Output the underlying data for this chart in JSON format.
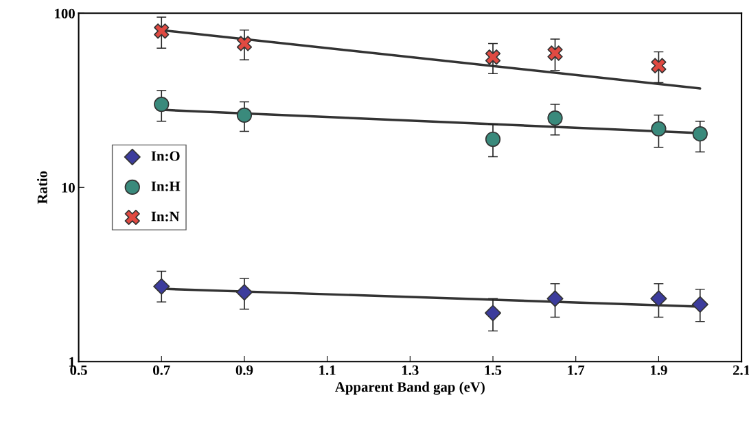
{
  "chart_data": {
    "type": "scatter",
    "xlabel": "Apparent Band gap (eV)",
    "ylabel": "Ratio",
    "log": "y",
    "xlim": [
      0.5,
      2.1
    ],
    "xticks": [
      0.5,
      0.7,
      0.9,
      1.1,
      1.3,
      1.5,
      1.7,
      1.9,
      2.1
    ],
    "ylim": [
      1,
      100
    ],
    "yticks": [
      1,
      10,
      100
    ],
    "grid": false,
    "legend": "left",
    "series": [
      {
        "name": "In:O",
        "color": "#3c3c9c",
        "marker": "diamond",
        "x": [
          0.7,
          0.9,
          1.5,
          1.65,
          1.9,
          2.0
        ],
        "values": [
          2.7,
          2.5,
          1.9,
          2.3,
          2.3,
          2.13
        ],
        "errors": [
          [
            2.2,
            3.3
          ],
          [
            2.0,
            3.0
          ],
          [
            1.5,
            2.3
          ],
          [
            1.8,
            2.8
          ],
          [
            1.8,
            2.8
          ],
          [
            1.7,
            2.6
          ]
        ]
      },
      {
        "name": "In:H",
        "color": "#3a8a7c",
        "marker": "circle",
        "x": [
          0.7,
          0.9,
          1.5,
          1.65,
          1.9,
          2.0
        ],
        "values": [
          30,
          26,
          18.9,
          25,
          21.7,
          20.3
        ],
        "errors": [
          [
            24,
            36
          ],
          [
            21,
            31
          ],
          [
            15,
            23
          ],
          [
            20,
            30
          ],
          [
            17,
            26
          ],
          [
            16,
            24
          ]
        ]
      },
      {
        "name": "In:N",
        "color": "#e04a42",
        "marker": "cross",
        "x": [
          0.7,
          0.9,
          1.5,
          1.65,
          1.9
        ],
        "values": [
          79,
          67,
          56,
          59,
          50
        ],
        "errors": [
          [
            63,
            95
          ],
          [
            54,
            80
          ],
          [
            45,
            67
          ],
          [
            47,
            71
          ],
          [
            40,
            60
          ]
        ]
      },
      {
        "type": "line",
        "color": "#333333",
        "x": [
          0.7,
          2.0
        ],
        "values": [
          2.62,
          2.07
        ]
      },
      {
        "type": "line",
        "color": "#333333",
        "x": [
          0.7,
          2.0
        ],
        "values": [
          27.9,
          20.5
        ]
      },
      {
        "type": "line",
        "color": "#333333",
        "x": [
          0.7,
          2.0
        ],
        "values": [
          80,
          37
        ]
      }
    ]
  }
}
